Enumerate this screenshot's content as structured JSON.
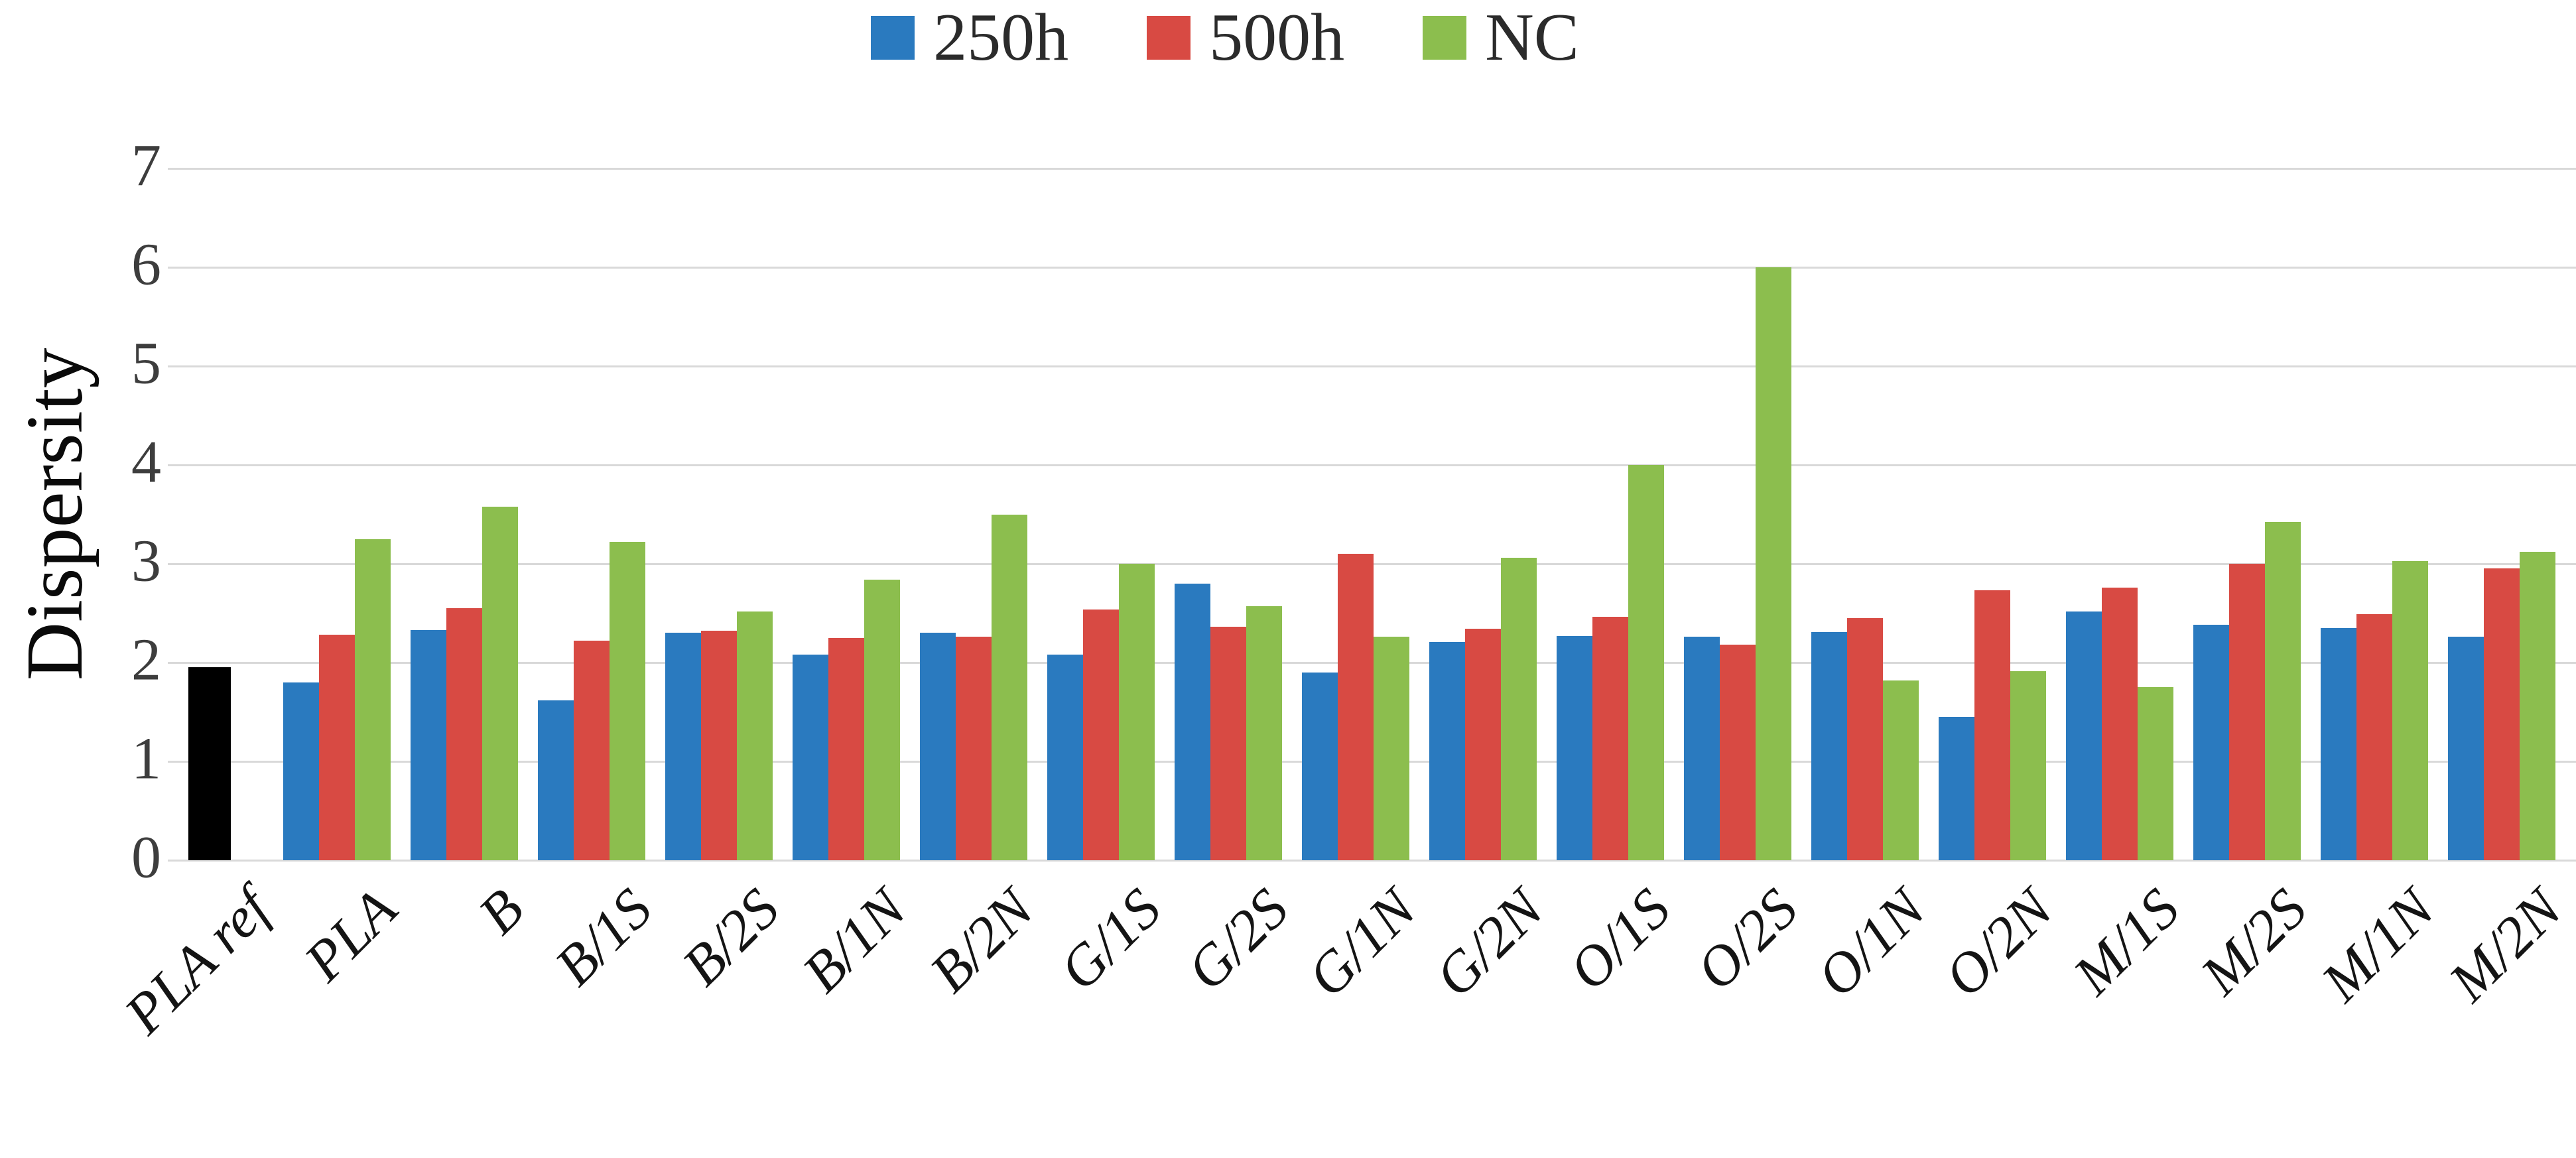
{
  "chart_data": {
    "type": "bar",
    "title": "",
    "xlabel": "",
    "ylabel": "Dispersity",
    "ylim": [
      0,
      7
    ],
    "yticks": [
      0,
      1,
      2,
      3,
      4,
      5,
      6,
      7
    ],
    "grid": true,
    "legend_position": "top-center",
    "categories": [
      "PLA ref",
      "PLA",
      "B",
      "B/1S",
      "B/2S",
      "B/1N",
      "B/2N",
      "G/1S",
      "G/2S",
      "G/1N",
      "G/2N",
      "O/1S",
      "O/2S",
      "O/1N",
      "O/2N",
      "M/1S",
      "M/2S",
      "M/1N",
      "M/2N"
    ],
    "series": [
      {
        "name": "250h",
        "color": "#2a7abf",
        "values": [
          null,
          1.8,
          2.33,
          1.62,
          2.3,
          2.08,
          2.3,
          2.08,
          2.8,
          1.9,
          2.21,
          2.27,
          2.26,
          2.31,
          1.45,
          2.52,
          2.38,
          2.35,
          2.26
        ]
      },
      {
        "name": "500h",
        "color": "#d84a43",
        "values": [
          null,
          2.28,
          2.55,
          2.22,
          2.32,
          2.25,
          2.26,
          2.54,
          2.36,
          3.1,
          2.34,
          2.46,
          2.18,
          2.45,
          2.73,
          2.76,
          3.0,
          2.49,
          2.95
        ]
      },
      {
        "name": "NC",
        "color": "#8cbe4e",
        "values": [
          null,
          3.25,
          3.58,
          3.22,
          2.52,
          2.84,
          3.5,
          3.0,
          2.57,
          2.26,
          3.06,
          4.0,
          6.0,
          1.82,
          1.91,
          1.75,
          3.42,
          3.03,
          3.12
        ]
      }
    ],
    "reference_bar": {
      "category": "PLA ref",
      "value": 1.95,
      "color": "#000000"
    }
  }
}
